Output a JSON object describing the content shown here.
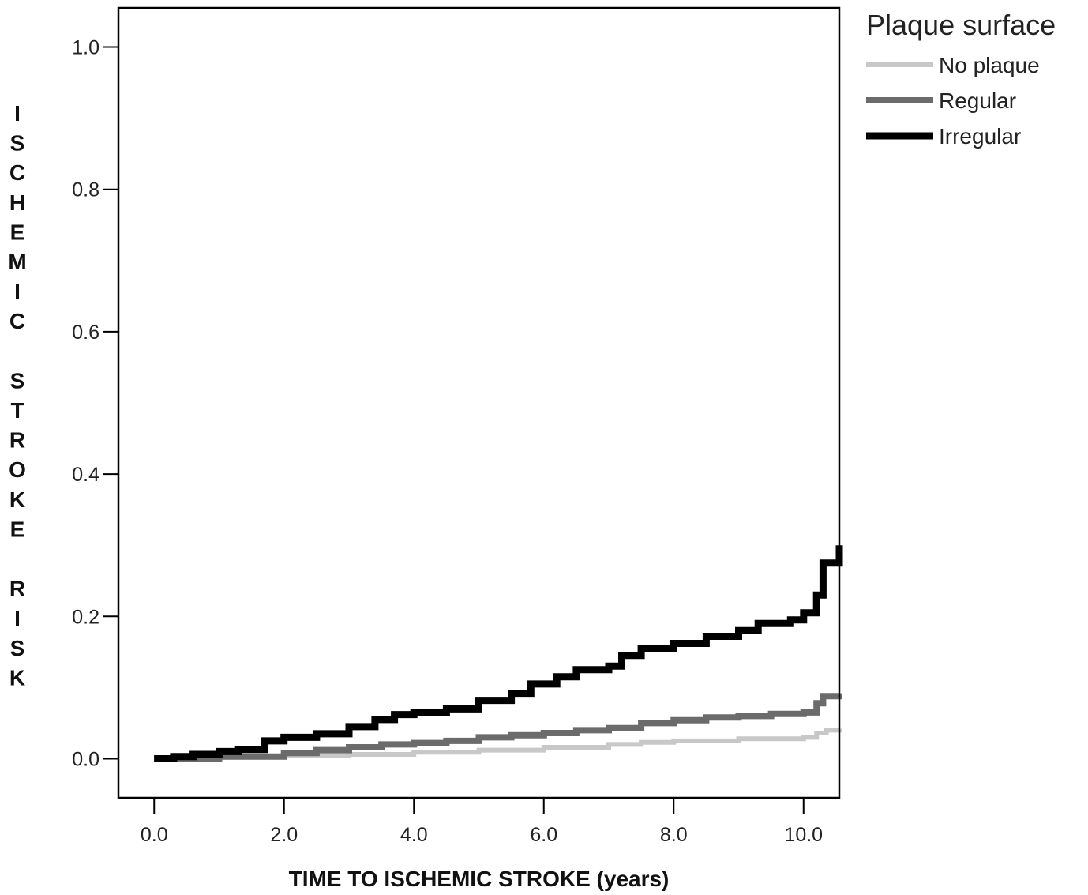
{
  "chart_data": {
    "type": "line",
    "title": "",
    "xlabel": "TIME TO ISCHEMIC STROKE (years)",
    "ylabel": "ISCHEMIC STROKE RISK",
    "xlim": [
      -0.55,
      10.55
    ],
    "ylim": [
      -0.055,
      1.055
    ],
    "x_ticks": [
      "0.0",
      "2.0",
      "4.0",
      "6.0",
      "8.0",
      "10.0"
    ],
    "y_ticks": [
      "0.0",
      "0.2",
      "0.4",
      "0.6",
      "0.8",
      "1.0"
    ],
    "legend_title": "Plaque surface",
    "legend_position": "outside-right-top",
    "grid": false,
    "series": [
      {
        "name": "No plaque",
        "color": "#c8c8c8",
        "step": true,
        "points": [
          [
            0.0,
            0.0
          ],
          [
            1.0,
            0.002
          ],
          [
            2.0,
            0.004
          ],
          [
            3.0,
            0.006
          ],
          [
            4.0,
            0.009
          ],
          [
            5.0,
            0.012
          ],
          [
            6.0,
            0.016
          ],
          [
            7.0,
            0.02
          ],
          [
            7.5,
            0.023
          ],
          [
            8.0,
            0.025
          ],
          [
            9.0,
            0.028
          ],
          [
            10.0,
            0.03
          ],
          [
            10.2,
            0.036
          ],
          [
            10.35,
            0.04
          ],
          [
            10.55,
            0.042
          ]
        ]
      },
      {
        "name": "Regular",
        "color": "#6b6b6b",
        "step": true,
        "points": [
          [
            0.0,
            0.0
          ],
          [
            1.0,
            0.003
          ],
          [
            2.0,
            0.008
          ],
          [
            2.5,
            0.012
          ],
          [
            3.0,
            0.016
          ],
          [
            3.5,
            0.02
          ],
          [
            4.0,
            0.022
          ],
          [
            4.5,
            0.025
          ],
          [
            5.0,
            0.03
          ],
          [
            5.5,
            0.033
          ],
          [
            6.0,
            0.036
          ],
          [
            6.5,
            0.04
          ],
          [
            7.0,
            0.043
          ],
          [
            7.5,
            0.05
          ],
          [
            8.0,
            0.054
          ],
          [
            8.5,
            0.058
          ],
          [
            9.0,
            0.06
          ],
          [
            9.5,
            0.063
          ],
          [
            10.0,
            0.065
          ],
          [
            10.2,
            0.078
          ],
          [
            10.3,
            0.088
          ],
          [
            10.55,
            0.092
          ]
        ]
      },
      {
        "name": "Irregular",
        "color": "#000000",
        "step": true,
        "points": [
          [
            0.0,
            0.0
          ],
          [
            0.3,
            0.003
          ],
          [
            0.6,
            0.006
          ],
          [
            1.0,
            0.01
          ],
          [
            1.3,
            0.013
          ],
          [
            1.7,
            0.025
          ],
          [
            2.0,
            0.03
          ],
          [
            2.5,
            0.035
          ],
          [
            3.0,
            0.045
          ],
          [
            3.4,
            0.055
          ],
          [
            3.7,
            0.062
          ],
          [
            4.0,
            0.065
          ],
          [
            4.5,
            0.07
          ],
          [
            5.0,
            0.082
          ],
          [
            5.5,
            0.092
          ],
          [
            5.8,
            0.105
          ],
          [
            6.2,
            0.115
          ],
          [
            6.5,
            0.125
          ],
          [
            7.0,
            0.13
          ],
          [
            7.2,
            0.145
          ],
          [
            7.5,
            0.155
          ],
          [
            8.0,
            0.162
          ],
          [
            8.5,
            0.172
          ],
          [
            9.0,
            0.18
          ],
          [
            9.3,
            0.19
          ],
          [
            9.8,
            0.195
          ],
          [
            10.0,
            0.205
          ],
          [
            10.2,
            0.23
          ],
          [
            10.3,
            0.275
          ],
          [
            10.55,
            0.3
          ]
        ]
      }
    ]
  }
}
